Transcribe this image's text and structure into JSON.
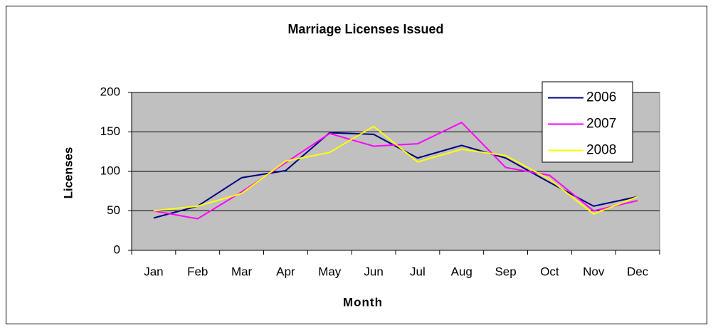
{
  "chart_data": {
    "type": "line",
    "title": "Marriage Licenses Issued",
    "x_label": "Month",
    "y_label": "Licenses",
    "categories": [
      "Jan",
      "Feb",
      "Mar",
      "Apr",
      "May",
      "Jun",
      "Jul",
      "Aug",
      "Sep",
      "Oct",
      "Nov",
      "Dec"
    ],
    "series": [
      {
        "name": "2006",
        "color": "#000080",
        "values": [
          41,
          56,
          92,
          101,
          149,
          147,
          117,
          133,
          117,
          86,
          56,
          68
        ]
      },
      {
        "name": "2007",
        "color": "#ff00ff",
        "values": [
          50,
          40,
          74,
          111,
          148,
          132,
          135,
          162,
          105,
          95,
          50,
          63
        ]
      },
      {
        "name": "2008",
        "color": "#ffff00",
        "values": [
          50,
          56,
          72,
          113,
          124,
          157,
          112,
          128,
          120,
          90,
          46,
          68
        ]
      }
    ],
    "ylim": [
      0,
      200
    ],
    "yticks": [
      0,
      50,
      100,
      150,
      200
    ],
    "grid": true,
    "legend": "upper right"
  }
}
